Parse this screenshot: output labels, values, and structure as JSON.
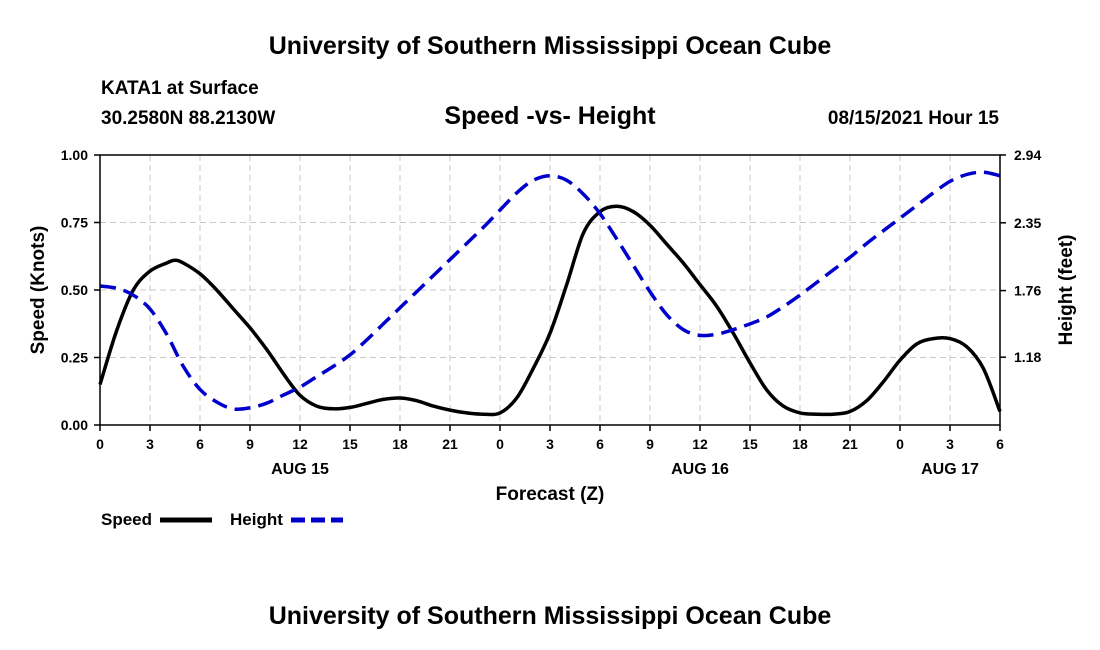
{
  "page": {
    "title_top": "University of Southern Mississippi Ocean Cube",
    "title_bottom": "University of Southern Mississippi Ocean Cube",
    "station": "KATA1 at Surface",
    "coords": "30.2580N  88.2130W",
    "datetime": "08/15/2021 Hour 15"
  },
  "chart_data": {
    "type": "line",
    "title": "Speed -vs- Height",
    "xlabel": "Forecast (Z)",
    "ylabel_left": "Speed (Knots)",
    "ylabel_right": "Height (feet)",
    "x_hours_range": [
      0,
      54
    ],
    "x_ticks": [
      {
        "hour": 0,
        "label": "0"
      },
      {
        "hour": 3,
        "label": "3"
      },
      {
        "hour": 6,
        "label": "6"
      },
      {
        "hour": 9,
        "label": "9"
      },
      {
        "hour": 12,
        "label": "12"
      },
      {
        "hour": 15,
        "label": "15"
      },
      {
        "hour": 18,
        "label": "18"
      },
      {
        "hour": 21,
        "label": "21"
      },
      {
        "hour": 24,
        "label": "0"
      },
      {
        "hour": 27,
        "label": "3"
      },
      {
        "hour": 30,
        "label": "6"
      },
      {
        "hour": 33,
        "label": "9"
      },
      {
        "hour": 36,
        "label": "12"
      },
      {
        "hour": 39,
        "label": "15"
      },
      {
        "hour": 42,
        "label": "18"
      },
      {
        "hour": 45,
        "label": "21"
      },
      {
        "hour": 48,
        "label": "0"
      },
      {
        "hour": 51,
        "label": "3"
      },
      {
        "hour": 54,
        "label": "6"
      }
    ],
    "date_labels": [
      {
        "hour": 12,
        "label": "AUG 15"
      },
      {
        "hour": 36,
        "label": "AUG 16"
      },
      {
        "hour": 51,
        "label": "AUG 17"
      }
    ],
    "y_left": {
      "range": [
        0,
        1
      ],
      "ticks": [
        0,
        0.25,
        0.5,
        0.75,
        1
      ],
      "labels": [
        "0.00",
        "0.25",
        "0.50",
        "0.75",
        "1.00"
      ]
    },
    "y_right": {
      "range": [
        0.59,
        2.94
      ],
      "ticks": [
        1.18,
        1.76,
        2.35,
        2.94
      ],
      "labels": [
        "1.18",
        "1.76",
        "2.35",
        "2.94"
      ]
    },
    "series": [
      {
        "name": "Speed",
        "axis": "left",
        "color": "#000000",
        "style": "solid",
        "x": [
          0,
          1,
          2,
          3,
          4,
          4.5,
          5,
          6,
          7,
          8,
          9,
          10,
          11,
          12,
          13,
          14,
          15,
          16,
          17,
          18,
          19,
          20,
          21,
          22,
          23,
          24,
          25,
          26,
          27,
          28,
          29,
          30,
          31,
          32,
          33,
          34,
          35,
          36,
          37,
          38,
          39,
          40,
          41,
          42,
          43,
          44,
          45,
          46,
          47,
          48,
          49,
          50,
          51,
          52,
          53,
          54
        ],
        "values": [
          0.15,
          0.35,
          0.5,
          0.57,
          0.6,
          0.61,
          0.6,
          0.56,
          0.5,
          0.43,
          0.36,
          0.28,
          0.19,
          0.11,
          0.07,
          0.06,
          0.065,
          0.08,
          0.095,
          0.1,
          0.09,
          0.07,
          0.055,
          0.045,
          0.04,
          0.045,
          0.1,
          0.21,
          0.34,
          0.52,
          0.71,
          0.79,
          0.81,
          0.79,
          0.74,
          0.67,
          0.6,
          0.52,
          0.44,
          0.34,
          0.23,
          0.13,
          0.07,
          0.045,
          0.04,
          0.04,
          0.05,
          0.09,
          0.16,
          0.24,
          0.3,
          0.32,
          0.32,
          0.29,
          0.21,
          0.05
        ]
      },
      {
        "name": "Height",
        "axis": "right",
        "color": "#0000cc",
        "style": "dashed",
        "x": [
          0,
          1,
          2,
          3,
          4,
          5,
          6,
          7,
          8,
          9,
          10,
          11,
          12,
          13,
          14,
          15,
          16,
          17,
          18,
          19,
          20,
          21,
          22,
          23,
          24,
          25,
          26,
          27,
          28,
          29,
          30,
          31,
          32,
          33,
          34,
          35,
          36,
          37,
          38,
          39,
          40,
          41,
          42,
          43,
          44,
          45,
          46,
          47,
          48,
          49,
          50,
          51,
          52,
          53,
          54
        ],
        "values": [
          1.8,
          1.78,
          1.72,
          1.6,
          1.38,
          1.1,
          0.9,
          0.79,
          0.73,
          0.74,
          0.78,
          0.85,
          0.92,
          1.01,
          1.1,
          1.2,
          1.33,
          1.47,
          1.61,
          1.75,
          1.89,
          2.03,
          2.17,
          2.31,
          2.46,
          2.61,
          2.72,
          2.76,
          2.72,
          2.6,
          2.43,
          2.21,
          1.98,
          1.75,
          1.55,
          1.42,
          1.37,
          1.38,
          1.42,
          1.47,
          1.53,
          1.62,
          1.72,
          1.83,
          1.94,
          2.05,
          2.17,
          2.28,
          2.39,
          2.5,
          2.61,
          2.71,
          2.77,
          2.79,
          2.76
        ]
      }
    ],
    "legend": [
      {
        "label": "Speed",
        "color": "#000000",
        "style": "solid"
      },
      {
        "label": "Height",
        "color": "#0000cc",
        "style": "dashed"
      }
    ]
  }
}
